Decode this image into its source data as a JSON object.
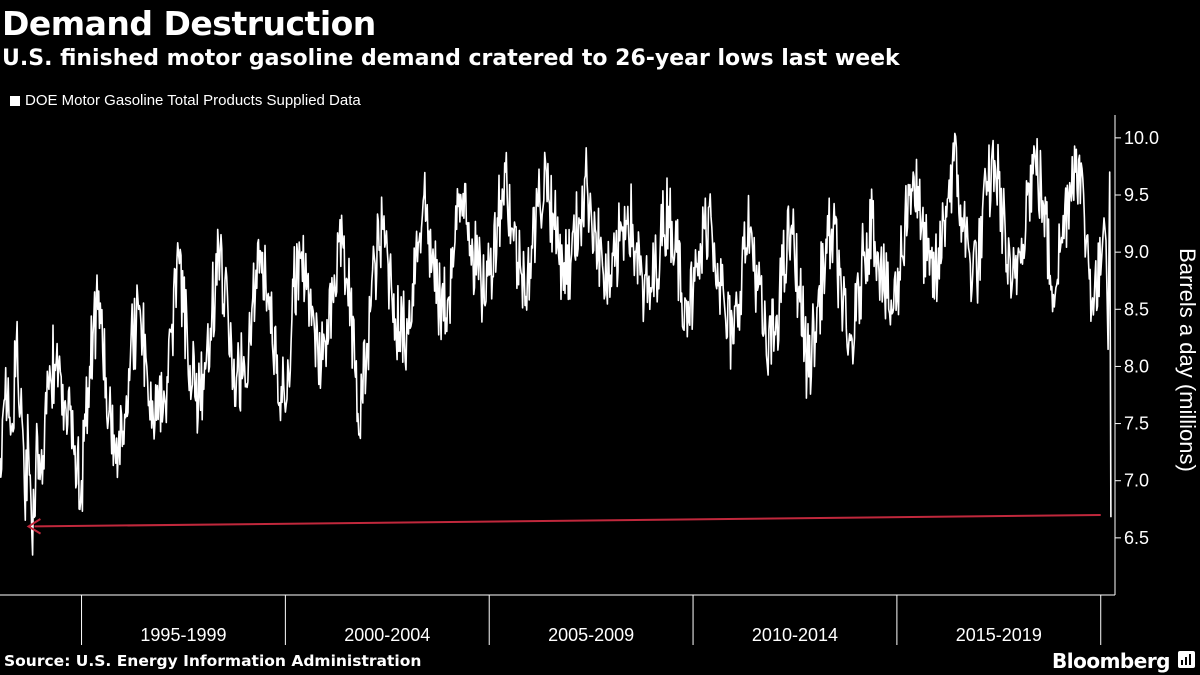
{
  "header": {
    "title": "Demand Destruction",
    "subtitle": "U.S. finished motor gasoline demand cratered to 26-year lows last week"
  },
  "footer": {
    "source": "Source: U.S. Energy Information Administration",
    "brand": "Bloomberg"
  },
  "colors": {
    "background": "#000000",
    "series": "#ffffff",
    "annotation_arrow": "#c0283c"
  },
  "chart_data": {
    "type": "line",
    "ylabel": "Barrels a day (millions)",
    "ylim": [
      6.0,
      10.2
    ],
    "yticks": [
      6.5,
      7.0,
      7.5,
      8.0,
      8.5,
      9.0,
      9.5,
      10.0
    ],
    "ytick_labels": [
      "6.5",
      "7.0",
      "7.5",
      "8.0",
      "8.5",
      "9.0",
      "9.5",
      "10.0"
    ],
    "xlim": [
      1993.0,
      2020.35
    ],
    "x_category_bands": [
      {
        "label": "1995-1999",
        "start": 1995,
        "end": 2000
      },
      {
        "label": "2000-2004",
        "start": 2000,
        "end": 2005
      },
      {
        "label": "2005-2009",
        "start": 2005,
        "end": 2010
      },
      {
        "label": "2010-2014",
        "start": 2010,
        "end": 2015
      },
      {
        "label": "2015-2019",
        "start": 2015,
        "end": 2020
      }
    ],
    "grid": false,
    "legend": "top-left",
    "series": [
      {
        "name": "DOE Motor Gasoline Total Products Supplied Data",
        "frequency": "weekly (approximate trend points shown)",
        "x": [
          1993.0,
          1993.1,
          1993.2,
          1993.3,
          1993.4,
          1993.5,
          1993.6,
          1993.7,
          1993.8,
          1993.9,
          1994.0,
          1994.2,
          1994.4,
          1994.6,
          1994.8,
          1995.0,
          1995.2,
          1995.4,
          1995.6,
          1995.8,
          1996.0,
          1996.2,
          1996.4,
          1996.6,
          1996.8,
          1997.0,
          1997.2,
          1997.4,
          1997.6,
          1997.8,
          1998.0,
          1998.2,
          1998.4,
          1998.6,
          1998.8,
          1999.0,
          1999.2,
          1999.4,
          1999.6,
          1999.8,
          2000.0,
          2000.2,
          2000.4,
          2000.6,
          2000.8,
          2001.0,
          2001.2,
          2001.4,
          2001.6,
          2001.8,
          2002.0,
          2002.2,
          2002.4,
          2002.6,
          2002.8,
          2003.0,
          2003.2,
          2003.4,
          2003.6,
          2003.8,
          2004.0,
          2004.2,
          2004.4,
          2004.6,
          2004.8,
          2005.0,
          2005.2,
          2005.4,
          2005.6,
          2005.8,
          2006.0,
          2006.2,
          2006.4,
          2006.6,
          2006.8,
          2007.0,
          2007.2,
          2007.4,
          2007.6,
          2007.8,
          2008.0,
          2008.2,
          2008.4,
          2008.6,
          2008.8,
          2009.0,
          2009.2,
          2009.4,
          2009.6,
          2009.8,
          2010.0,
          2010.2,
          2010.4,
          2010.6,
          2010.8,
          2011.0,
          2011.2,
          2011.4,
          2011.6,
          2011.8,
          2012.0,
          2012.2,
          2012.4,
          2012.6,
          2012.8,
          2013.0,
          2013.2,
          2013.4,
          2013.6,
          2013.8,
          2014.0,
          2014.2,
          2014.4,
          2014.6,
          2014.8,
          2015.0,
          2015.2,
          2015.4,
          2015.6,
          2015.8,
          2016.0,
          2016.2,
          2016.4,
          2016.6,
          2016.8,
          2017.0,
          2017.2,
          2017.4,
          2017.6,
          2017.8,
          2018.0,
          2018.2,
          2018.4,
          2018.6,
          2018.8,
          2019.0,
          2019.2,
          2019.4,
          2019.6,
          2019.8,
          2020.0,
          2020.08,
          2020.13,
          2020.18,
          2020.22,
          2020.25
        ],
        "y": [
          7.2,
          7.7,
          7.9,
          7.5,
          8.2,
          7.6,
          6.9,
          7.3,
          6.35,
          7.5,
          7.1,
          7.8,
          8.2,
          7.7,
          7.3,
          7.0,
          8.0,
          8.5,
          7.9,
          7.4,
          7.3,
          8.1,
          8.5,
          8.0,
          7.5,
          7.6,
          8.3,
          8.9,
          8.2,
          7.7,
          7.8,
          8.5,
          9.0,
          8.4,
          7.9,
          8.0,
          8.6,
          9.0,
          8.5,
          8.1,
          7.6,
          8.7,
          9.0,
          8.6,
          8.1,
          8.0,
          8.8,
          9.1,
          8.6,
          7.4,
          8.2,
          8.9,
          9.2,
          8.7,
          8.3,
          8.3,
          9.0,
          9.5,
          8.9,
          8.5,
          8.6,
          9.2,
          9.6,
          9.0,
          8.7,
          8.8,
          9.3,
          9.7,
          9.1,
          8.8,
          8.9,
          9.4,
          9.7,
          9.2,
          8.9,
          8.9,
          9.3,
          9.6,
          9.2,
          8.8,
          8.7,
          9.1,
          9.4,
          9.0,
          8.6,
          8.7,
          9.1,
          9.4,
          9.0,
          8.6,
          8.6,
          9.0,
          9.4,
          8.9,
          8.4,
          8.2,
          8.9,
          9.2,
          8.7,
          8.1,
          8.3,
          8.8,
          9.2,
          8.7,
          8.0,
          8.3,
          8.9,
          9.2,
          8.8,
          8.1,
          8.4,
          9.0,
          9.3,
          8.9,
          8.5,
          8.6,
          9.3,
          9.7,
          9.2,
          8.8,
          8.8,
          9.4,
          9.8,
          9.3,
          8.9,
          8.9,
          9.5,
          9.8,
          9.3,
          8.6,
          9.0,
          9.5,
          9.8,
          9.4,
          8.7,
          9.0,
          9.5,
          9.9,
          9.3,
          8.6,
          8.8,
          9.3,
          9.1,
          8.15,
          9.7,
          6.68
        ]
      }
    ],
    "annotation": {
      "type": "arrow",
      "from": [
        2020.0,
        6.7
      ],
      "to": [
        1993.7,
        6.6
      ]
    }
  }
}
